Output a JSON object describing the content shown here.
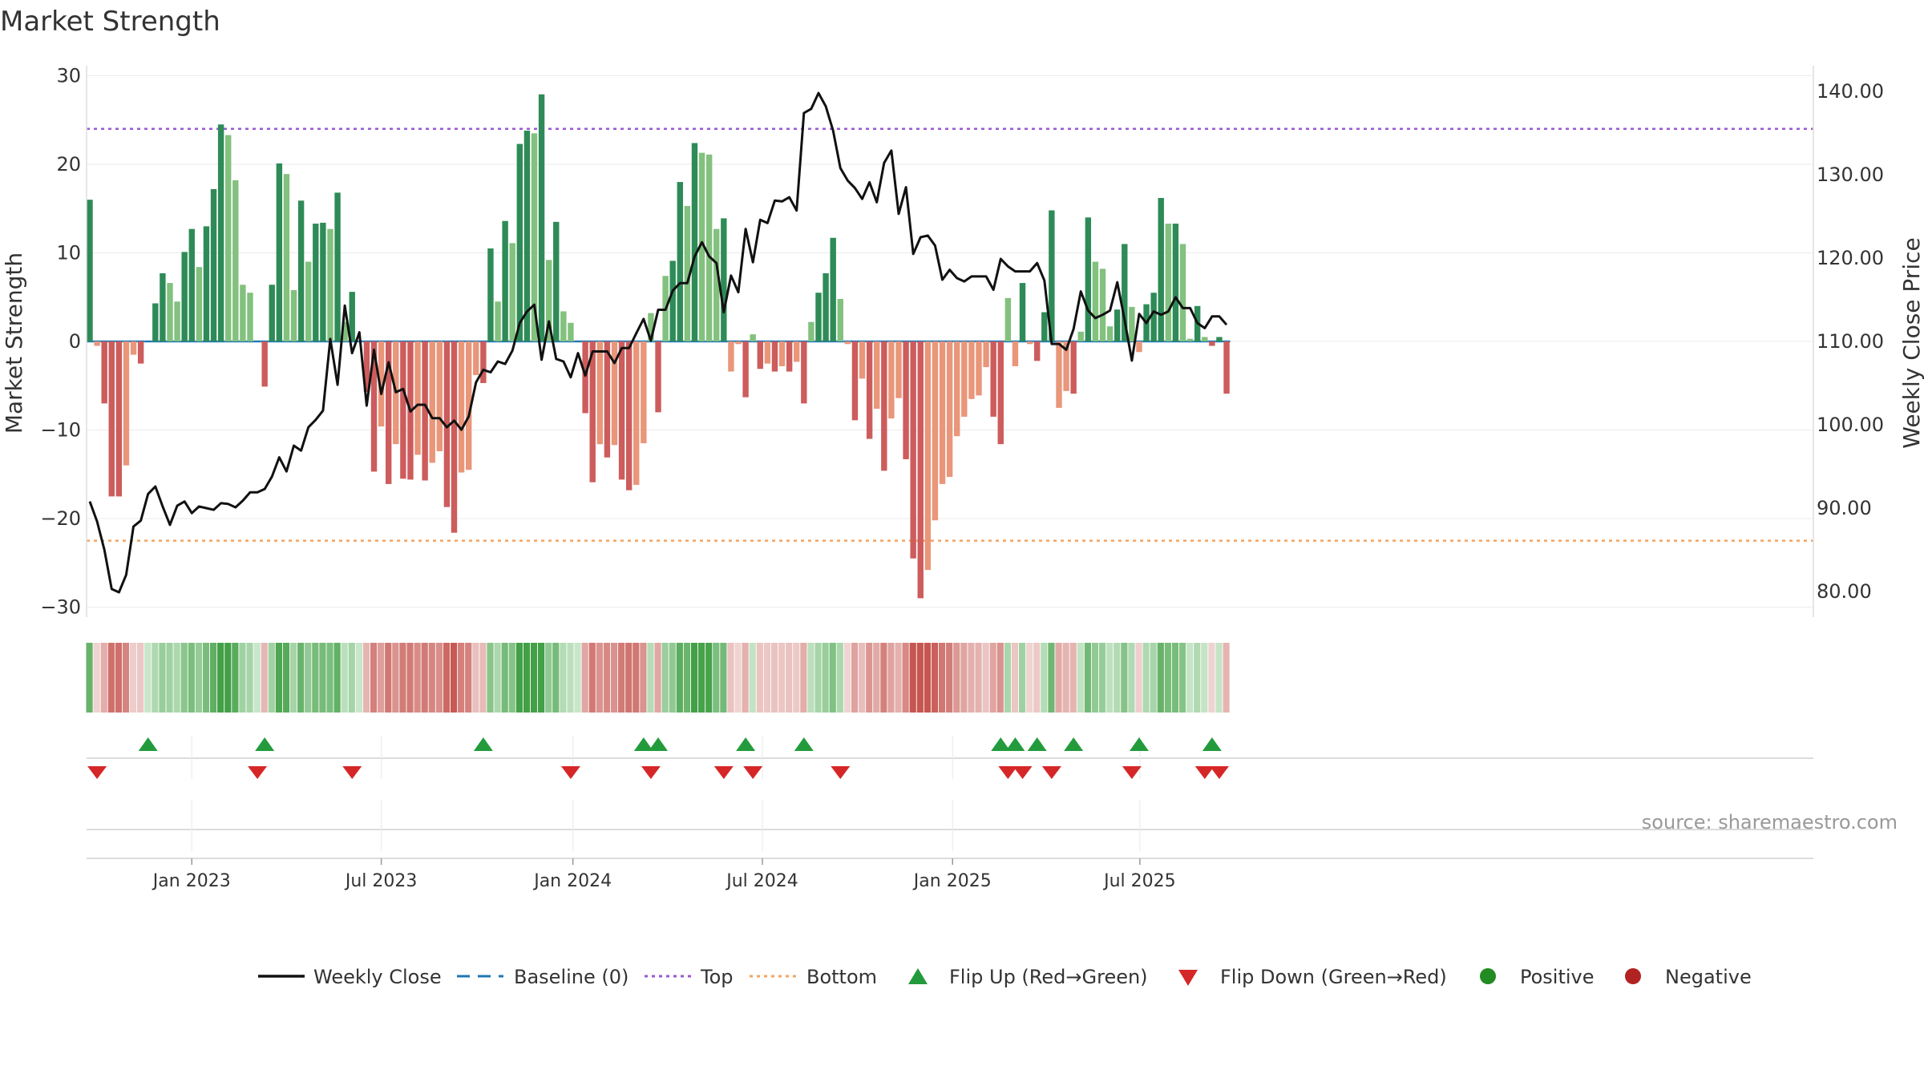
{
  "chart_data": {
    "type": "bar",
    "title": "Market Strength",
    "ylabel_left": "Market Strength",
    "ylabel_right": "Weekly Close Price",
    "ylim_left": [
      -30,
      30
    ],
    "ylim_right": [
      80,
      140
    ],
    "yticks_left": [
      -30,
      -20,
      -10,
      0,
      10,
      20,
      30
    ],
    "ytick_labels_left": [
      "−30",
      "−20",
      "−10",
      "0",
      "10",
      "20",
      "30"
    ],
    "yticks_right": [
      80,
      90,
      100,
      110,
      120,
      130,
      140
    ],
    "ytick_labels_right": [
      "80.00",
      "90.00",
      "100.00",
      "110.00",
      "120.00",
      "130.00",
      "140.00"
    ],
    "x_start": "2022-10-03",
    "x_end": "2025-10-06",
    "xticks": [
      "Jan 2023",
      "Jul 2023",
      "Jan 2024",
      "Jul 2024",
      "Jan 2025",
      "Jul 2025"
    ],
    "xtick_weeks": [
      14,
      40,
      66.3,
      92.3,
      118.4,
      144.1
    ],
    "top_line": 24,
    "bottom_line": -22.5,
    "strength": [
      16,
      -0.5,
      -7,
      -17.5,
      -17.5,
      -14,
      -1.5,
      -2.5,
      0,
      4.3,
      7.7,
      6.6,
      4.5,
      10.1,
      12.7,
      8.4,
      13,
      17.2,
      24.5,
      23.3,
      18.2,
      6.4,
      5.5,
      0,
      -5.1,
      6.4,
      20.1,
      18.9,
      5.8,
      15.9,
      9,
      13.3,
      13.4,
      12.7,
      16.8,
      2.2,
      5.6,
      0,
      -5.7,
      -14.7,
      -9.6,
      -16.1,
      -11.6,
      -15.5,
      -15.6,
      -12.8,
      -15.7,
      -13.7,
      -12.4,
      -18.7,
      -21.6,
      -14.8,
      -14.5,
      -3.8,
      -4.7,
      10.5,
      4.5,
      13.6,
      11.1,
      22.3,
      23.8,
      23.5,
      27.9,
      9.2,
      13.5,
      3.4,
      2.1,
      0,
      -8.1,
      -15.9,
      -11.6,
      -13.1,
      -11.7,
      -15.6,
      -16.8,
      -16.2,
      -11.5,
      3.2,
      -8,
      7.4,
      9.1,
      18,
      15.3,
      22.4,
      21.3,
      21.1,
      12.7,
      13.9,
      -3.4,
      -0.3,
      -6.3,
      0.8,
      -3.1,
      -2.5,
      -3.4,
      -2.8,
      -3.4,
      -2.3,
      -7,
      2.2,
      5.5,
      7.7,
      11.7,
      4.8,
      -0.3,
      -8.9,
      -4.2,
      -11,
      -7.6,
      -14.6,
      -8.7,
      -6.4,
      -13.3,
      -24.5,
      -29,
      -25.8,
      -20.2,
      -16.1,
      -15.3,
      -10.7,
      -8.5,
      -6.5,
      -6.1,
      -2.9,
      -8.5,
      -11.6,
      4.9,
      -2.8,
      6.6,
      -0.3,
      -2.2,
      3.3,
      14.8,
      -7.5,
      -5.6,
      -5.9,
      1.1,
      14,
      9,
      8.2,
      1.7,
      3.6,
      11,
      3.9,
      -1.2,
      4.2,
      5.5,
      16.2,
      13.3,
      13.3,
      11,
      0.3,
      4,
      0.5,
      -0.5,
      0.5,
      -5.9
    ],
    "price": [
      90.8,
      88.4,
      85,
      80.3,
      79.9,
      82,
      87.8,
      88.5,
      91.7,
      92.6,
      90.2,
      88,
      90.3,
      90.8,
      89.4,
      90.2,
      90,
      89.8,
      90.6,
      90.5,
      90.1,
      90.9,
      91.9,
      91.9,
      92.3,
      93.8,
      96.1,
      94.4,
      97.5,
      96.9,
      99.7,
      100.6,
      101.7,
      110.3,
      104.8,
      114.3,
      108.6,
      111.1,
      102.3,
      109,
      103.7,
      107.5,
      103.9,
      104.3,
      101.6,
      102.4,
      102.4,
      100.8,
      100.8,
      99.7,
      100.5,
      99.4,
      101,
      105.1,
      106.6,
      106.3,
      107.6,
      107.3,
      108.9,
      112.2,
      113.6,
      114.4,
      107.8,
      112.4,
      107.9,
      107.6,
      105.7,
      108.6,
      105.9,
      108.8,
      108.8,
      108.8,
      107.4,
      109.2,
      109.2,
      111,
      112.7,
      110.1,
      113.8,
      113.8,
      116.1,
      117,
      117,
      120.2,
      121.9,
      120.2,
      119.4,
      113.5,
      117.9,
      115.9,
      123.5,
      119.5,
      124.6,
      124.2,
      126.9,
      126.8,
      127.3,
      125.7,
      137.4,
      137.9,
      139.8,
      138.2,
      135.3,
      130.8,
      129.3,
      128.4,
      127.1,
      129.1,
      126.7,
      131.4,
      132.9,
      125.3,
      128.5,
      120.5,
      122.5,
      122.7,
      121.5,
      117.4,
      118.6,
      117.6,
      117.2,
      117.8,
      117.8,
      117.8,
      116.2,
      119.9,
      119,
      118.4,
      118.4,
      118.4,
      119.4,
      117.3,
      109.7,
      109.7,
      109,
      111.5,
      116,
      113.7,
      112.8,
      113.2,
      113.7,
      117.1,
      112.6,
      107.7,
      113.3,
      112.2,
      113.6,
      113.2,
      113.6,
      115.3,
      114,
      114,
      112.2,
      111.6,
      113,
      113,
      112
    ]
  },
  "flips_up": [
    8,
    24,
    54,
    76,
    78,
    90,
    98,
    125,
    127,
    130,
    135,
    144,
    154
  ],
  "flips_down": [
    1,
    23,
    36,
    66,
    77,
    87,
    91,
    103,
    126,
    128,
    132,
    143,
    153,
    155
  ],
  "legend": {
    "weekly_close": "Weekly Close",
    "baseline": "Baseline (0)",
    "top": "Top",
    "bottom": "Bottom",
    "flip_up": "Flip Up (Red→Green)",
    "flip_down": "Flip Down (Green→Red)",
    "positive": "Positive",
    "negative": "Negative"
  },
  "source": "source: sharemaestro.com",
  "colors": {
    "green_dark": "#2e8b57",
    "green_light": "#82c17e",
    "red_dark": "#cd5c5c",
    "salmon": "#e9967a",
    "price_line": "#111111",
    "baseline": "#1f77b4",
    "top_line": "#9b59d0",
    "bottom_line": "#f4a460",
    "marker_up": "#239b3c",
    "marker_down": "#d62728",
    "positive": "#228b22",
    "negative": "#b22222"
  }
}
